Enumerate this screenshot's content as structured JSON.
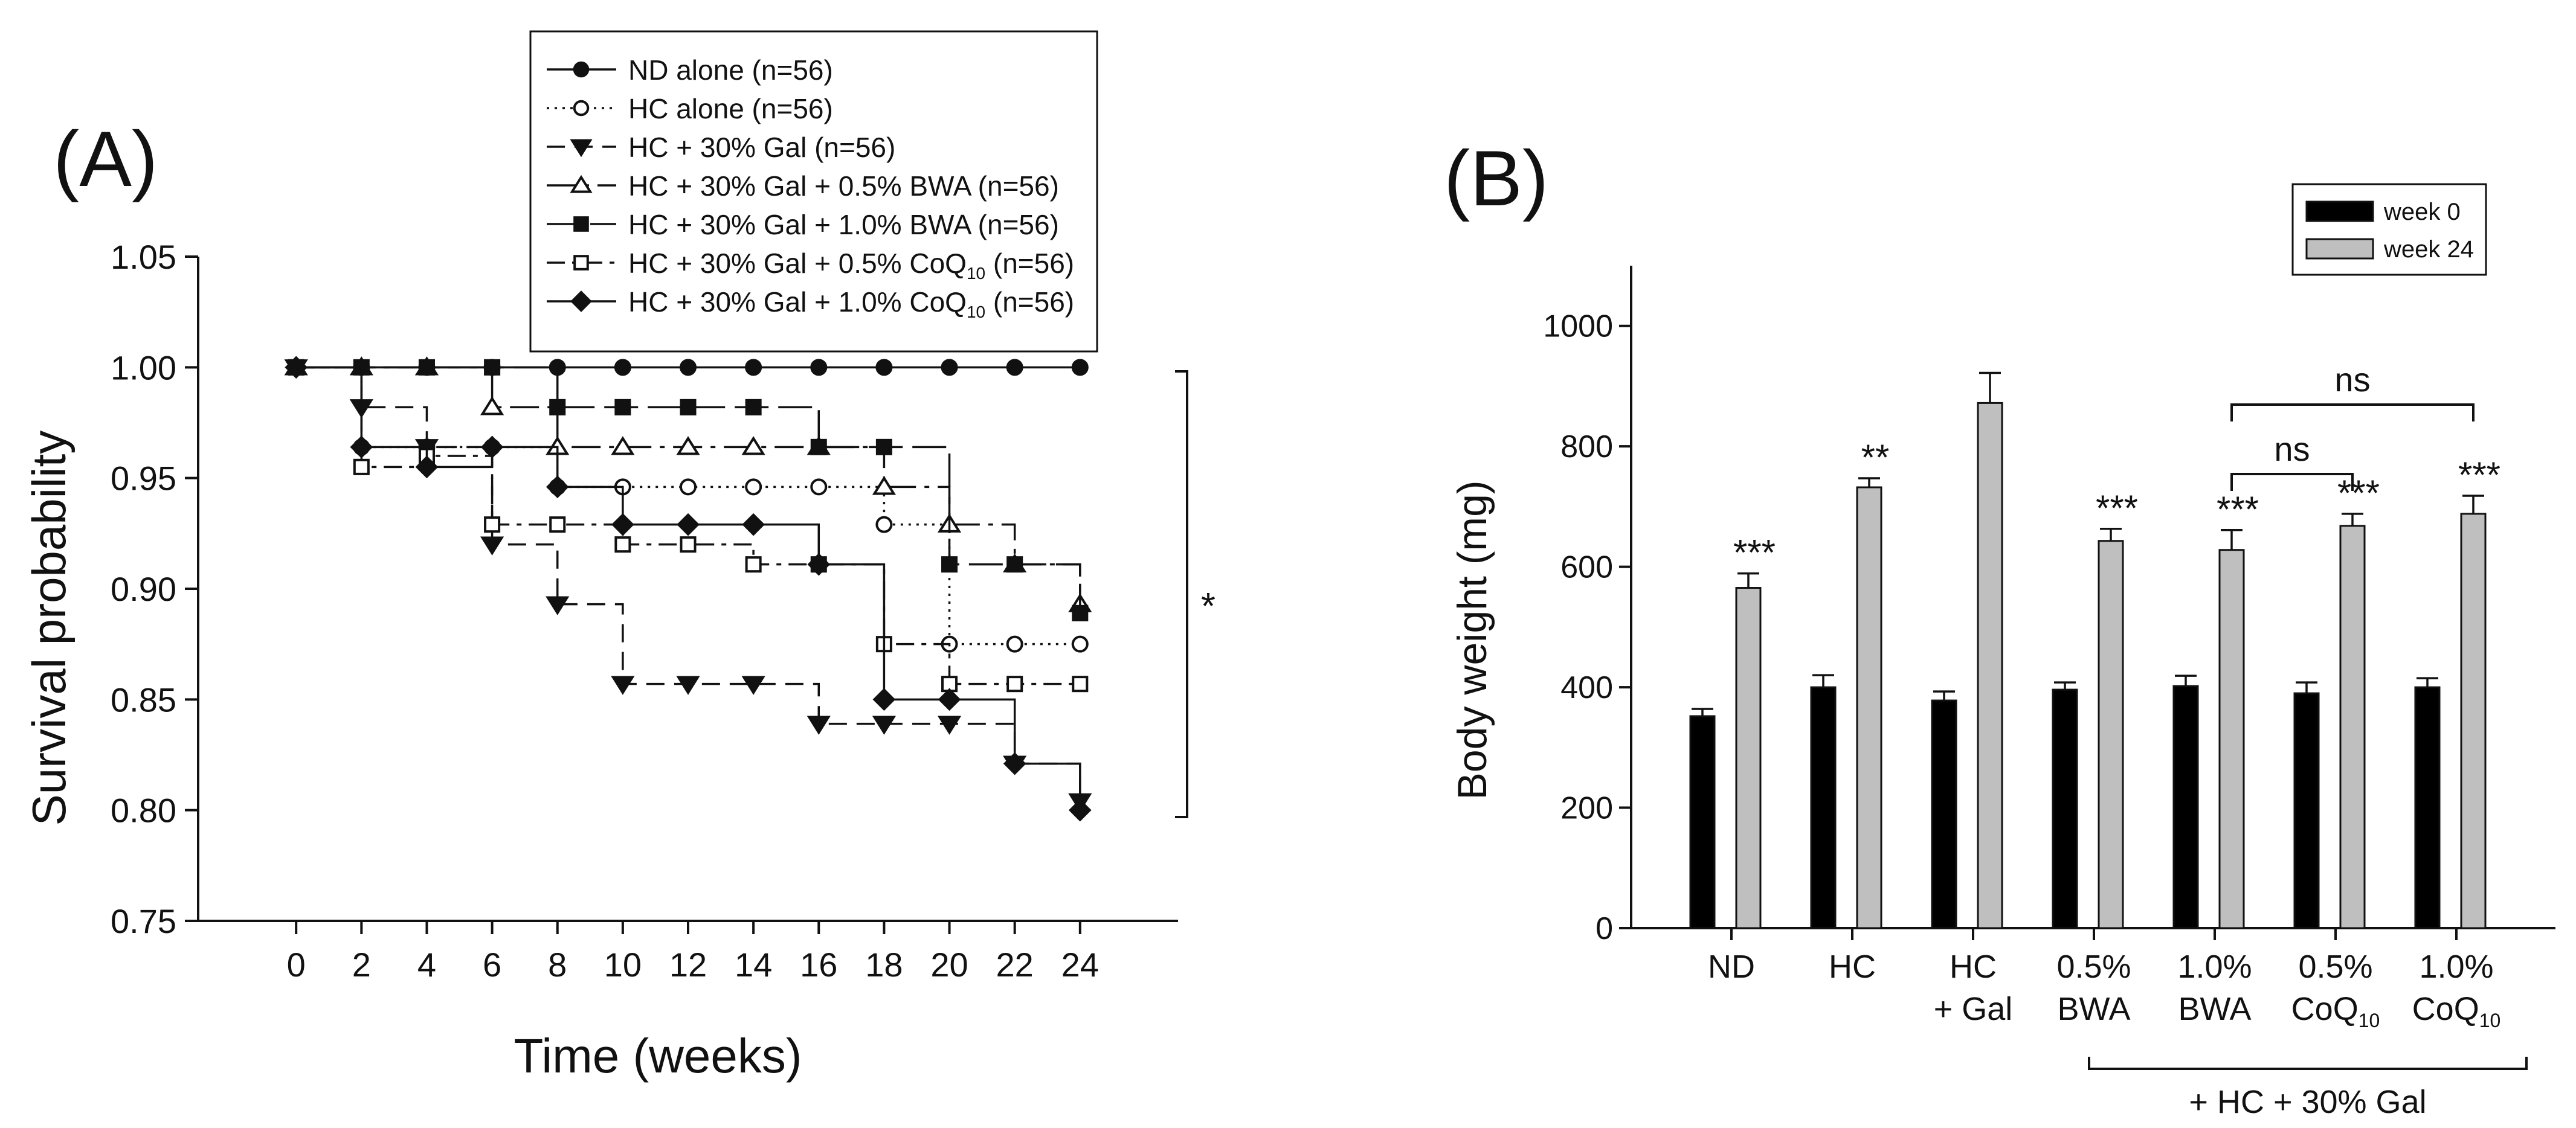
{
  "chart_data": [
    {
      "panel_label": "(A)",
      "type": "line",
      "subtype": "kaplan-meier step",
      "xlabel": "Time (weeks)",
      "ylabel": "Survival probability",
      "xlim": [
        -3,
        27
      ],
      "ylim": [
        0.75,
        1.05
      ],
      "x_ticks": [
        "0",
        "2",
        "4",
        "6",
        "8",
        "10",
        "12",
        "14",
        "16",
        "18",
        "20",
        "22",
        "24"
      ],
      "y_ticks": [
        "0.75",
        "0.80",
        "0.85",
        "0.90",
        "0.95",
        "1.00",
        "1.05"
      ],
      "significance": "*",
      "x": [
        0,
        2,
        4,
        6,
        8,
        10,
        12,
        14,
        16,
        18,
        20,
        22,
        24
      ],
      "series": [
        {
          "name": "ND alone (n=56)",
          "marker": "filled-circle",
          "line": "solid",
          "values": [
            1,
            1,
            1,
            1,
            1,
            1,
            1,
            1,
            1,
            1,
            1,
            1,
            1
          ]
        },
        {
          "name": "HC alone (n=56)",
          "marker": "open-circle",
          "line": "dotted",
          "values": [
            1,
            0.964,
            0.964,
            0.964,
            0.946,
            0.946,
            0.946,
            0.946,
            0.946,
            0.929,
            0.875,
            0.875,
            0.875
          ]
        },
        {
          "name": "HC + 30% Gal (n=56)",
          "marker": "filled-triangle-down",
          "line": "dashed",
          "values": [
            1,
            0.982,
            0.964,
            0.92,
            0.893,
            0.857,
            0.857,
            0.857,
            0.839,
            0.839,
            0.839,
            0.821,
            0.804
          ]
        },
        {
          "name": "HC + 30% Gal + 0.5% BWA (n=56)",
          "marker": "open-triangle-up",
          "line": "long-dash-dot",
          "values": [
            1,
            1,
            1,
            0.982,
            0.964,
            0.964,
            0.964,
            0.964,
            0.964,
            0.946,
            0.929,
            0.911,
            0.893
          ]
        },
        {
          "name": "HC + 30% Gal + 1.0% BWA (n=56)",
          "marker": "filled-square",
          "line": "long-dash",
          "values": [
            1,
            1,
            1,
            1,
            0.982,
            0.982,
            0.982,
            0.982,
            0.964,
            0.964,
            0.911,
            0.911,
            0.889
          ]
        },
        {
          "name_main": "HC + 30% Gal + 0.5% CoQ",
          "name_sub": "10",
          "name_tail": " (n=56)",
          "marker": "open-square",
          "line": "dash-dot",
          "values": [
            1,
            0.955,
            0.96,
            0.929,
            0.929,
            0.92,
            0.92,
            0.911,
            0.911,
            0.875,
            0.857,
            0.857,
            0.857
          ]
        },
        {
          "name_main": "HC + 30% Gal + 1.0% CoQ",
          "name_sub": "10",
          "name_tail": " (n=56)",
          "marker": "filled-diamond",
          "line": "solid",
          "values": [
            1,
            0.964,
            0.955,
            0.964,
            0.946,
            0.929,
            0.929,
            0.929,
            0.911,
            0.85,
            0.85,
            0.821,
            0.8
          ]
        }
      ]
    },
    {
      "panel_label": "(B)",
      "type": "bar",
      "ylabel": "Body weight (mg)",
      "ylim": [
        0,
        1100
      ],
      "y_ticks": [
        "0",
        "200",
        "400",
        "600",
        "800",
        "1000"
      ],
      "categories": [
        {
          "line1": "ND",
          "line2": ""
        },
        {
          "line1": "HC",
          "line2": ""
        },
        {
          "line1": "HC",
          "line2": "+ Gal"
        },
        {
          "line1": "0.5%",
          "line2": "BWA"
        },
        {
          "line1": "1.0%",
          "line2": "BWA"
        },
        {
          "line1": "0.5%",
          "line2": "CoQ",
          "line2_sub": "10"
        },
        {
          "line1": "1.0%",
          "line2": "CoQ",
          "line2_sub": "10"
        }
      ],
      "group_label": "+ HC + 30% Gal",
      "series": [
        {
          "name": "week 0",
          "color": "#000000",
          "values": [
            352,
            400,
            378,
            396,
            402,
            390,
            400
          ],
          "errors": [
            12,
            20,
            15,
            12,
            17,
            18,
            15
          ]
        },
        {
          "name": "week 24",
          "color": "#bfbfbf",
          "values": [
            565,
            732,
            872,
            643,
            628,
            668,
            688
          ],
          "errors": [
            24,
            15,
            50,
            20,
            33,
            20,
            30
          ]
        }
      ],
      "significance_labels": [
        "***",
        "**",
        "",
        "***",
        "***",
        "***",
        "***"
      ],
      "comparisons": [
        {
          "label": "ns",
          "from": "1.0% BWA",
          "to": "0.5% CoQ10"
        },
        {
          "label": "ns",
          "from": "1.0% BWA",
          "to": "1.0% CoQ10"
        }
      ]
    }
  ]
}
